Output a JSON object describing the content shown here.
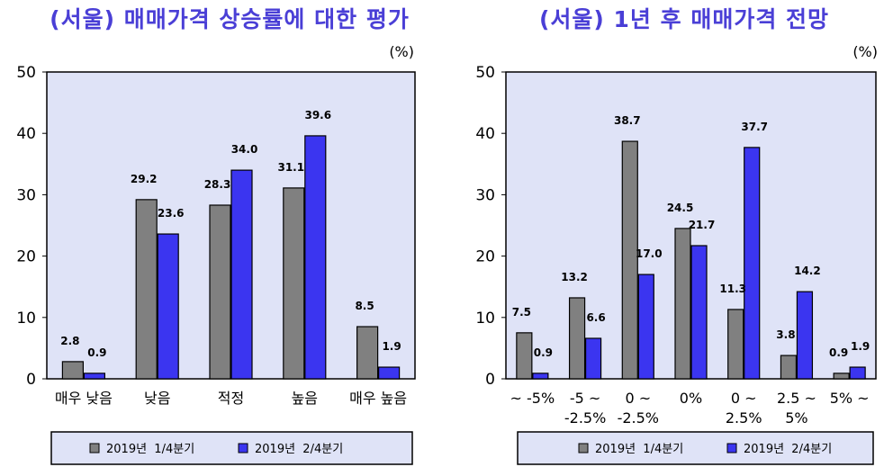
{
  "colors": {
    "series1": "#808080",
    "series2": "#3b35f0",
    "plot_bg": "#dfe3f7",
    "title": "#4a3fd6"
  },
  "chart_data": [
    {
      "type": "bar",
      "title": "(서울) 매매가격 상승률에 대한 평가",
      "unit": "(%)",
      "ylim": [
        0,
        50
      ],
      "yticks": [
        0,
        10,
        20,
        30,
        40,
        50
      ],
      "grid": false,
      "legend_position": "bottom",
      "categories": [
        [
          "매우 낮음"
        ],
        [
          "낮음"
        ],
        [
          "적정"
        ],
        [
          "높음"
        ],
        [
          "매우 높음"
        ]
      ],
      "series": [
        {
          "name": "2019년  1/4분기",
          "values": [
            2.8,
            29.2,
            28.3,
            31.1,
            8.5
          ],
          "labels": [
            "2.8",
            "29.2",
            "28.3",
            "31.1",
            "8.5"
          ]
        },
        {
          "name": "2019년  2/4분기",
          "values": [
            0.9,
            23.6,
            34.0,
            39.6,
            1.9
          ],
          "labels": [
            "0.9",
            "23.6",
            "34.0",
            "39.6",
            "1.9"
          ]
        }
      ]
    },
    {
      "type": "bar",
      "title": "(서울) 1년 후 매매가격 전망",
      "unit": "(%)",
      "ylim": [
        0,
        50
      ],
      "yticks": [
        0,
        10,
        20,
        30,
        40,
        50
      ],
      "grid": false,
      "legend_position": "bottom",
      "categories": [
        [
          "~ -5%"
        ],
        [
          "-5 ~",
          "-2.5%"
        ],
        [
          "0 ~",
          "-2.5%"
        ],
        [
          "0%"
        ],
        [
          "0 ~",
          "2.5%"
        ],
        [
          "2.5 ~",
          "5%"
        ],
        [
          "5% ~"
        ]
      ],
      "series": [
        {
          "name": "2019년  1/4분기",
          "values": [
            7.5,
            13.2,
            38.7,
            24.5,
            11.3,
            3.8,
            0.9
          ],
          "labels": [
            "7.5",
            "13.2",
            "38.7",
            "24.5",
            "11.3",
            "3.8",
            "0.9"
          ]
        },
        {
          "name": "2019년  2/4분기",
          "values": [
            0.9,
            6.6,
            17.0,
            21.7,
            37.7,
            14.2,
            1.9
          ],
          "labels": [
            "0.9",
            "6.6",
            "17.0",
            "21.7",
            "37.7",
            "14.2",
            "1.9"
          ]
        }
      ]
    }
  ]
}
